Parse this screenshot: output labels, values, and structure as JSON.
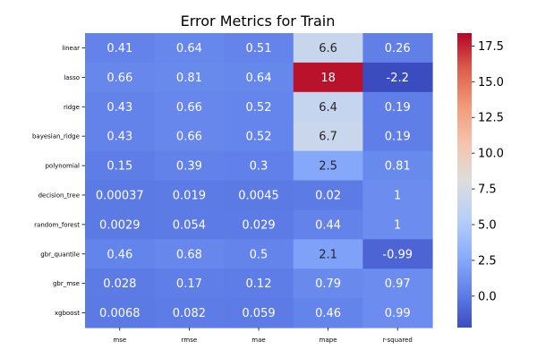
{
  "chart_data": {
    "type": "heatmap",
    "title": "Error Metrics for Train",
    "columns": [
      "mse",
      "rmse",
      "mae",
      "mape",
      "r-squared"
    ],
    "rows": [
      "linear",
      "lasso",
      "ridge",
      "bayesian_ridge",
      "polynomial",
      "decision_tree",
      "random_forest",
      "gbr_quantile",
      "gbr_mse",
      "xgboost"
    ],
    "values": [
      [
        0.41,
        0.64,
        0.51,
        6.6,
        0.26
      ],
      [
        0.66,
        0.81,
        0.64,
        18,
        -2.2
      ],
      [
        0.43,
        0.66,
        0.52,
        6.4,
        0.19
      ],
      [
        0.43,
        0.66,
        0.52,
        6.7,
        0.19
      ],
      [
        0.15,
        0.39,
        0.3,
        2.5,
        0.81
      ],
      [
        0.00037,
        0.019,
        0.0045,
        0.02,
        1
      ],
      [
        0.0029,
        0.054,
        0.029,
        0.44,
        1
      ],
      [
        0.46,
        0.68,
        0.5,
        2.1,
        -0.99
      ],
      [
        0.028,
        0.17,
        0.12,
        0.79,
        0.97
      ],
      [
        0.0068,
        0.082,
        0.059,
        0.46,
        0.99
      ]
    ],
    "labels": [
      [
        "0.41",
        "0.64",
        "0.51",
        "6.6",
        "0.26"
      ],
      [
        "0.66",
        "0.81",
        "0.64",
        "18",
        "-2.2"
      ],
      [
        "0.43",
        "0.66",
        "0.52",
        "6.4",
        "0.19"
      ],
      [
        "0.43",
        "0.66",
        "0.52",
        "6.7",
        "0.19"
      ],
      [
        "0.15",
        "0.39",
        "0.3",
        "2.5",
        "0.81"
      ],
      [
        "0.00037",
        "0.019",
        "0.0045",
        "0.02",
        "1"
      ],
      [
        "0.0029",
        "0.054",
        "0.029",
        "0.44",
        "1"
      ],
      [
        "0.46",
        "0.68",
        "0.5",
        "2.1",
        "-0.99"
      ],
      [
        "0.028",
        "0.17",
        "0.12",
        "0.79",
        "0.97"
      ],
      [
        "0.0068",
        "0.082",
        "0.059",
        "0.46",
        "0.99"
      ]
    ],
    "colormap": "coolwarm",
    "vmin": -2.2,
    "vmax": 18.4,
    "colorbar_ticks": [
      0.0,
      2.5,
      5.0,
      7.5,
      10.0,
      12.5,
      15.0,
      17.5
    ],
    "colorbar_tick_labels": [
      "0.0",
      "2.5",
      "5.0",
      "7.5",
      "10.0",
      "12.5",
      "15.0",
      "17.5"
    ],
    "grid": false
  }
}
